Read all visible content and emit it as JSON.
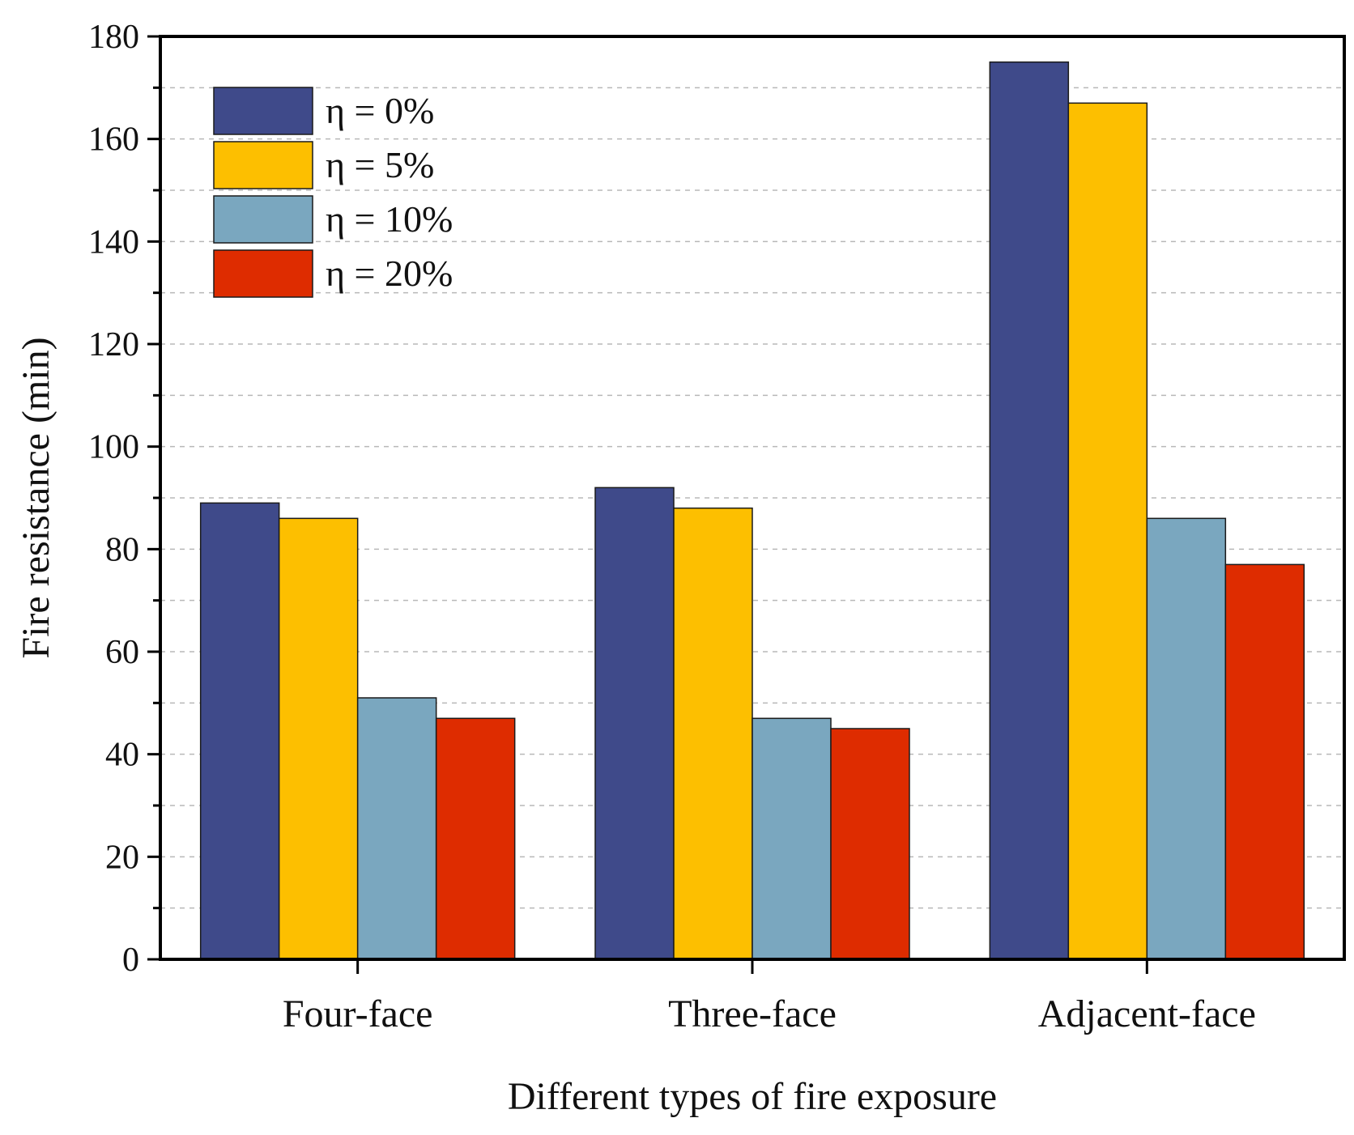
{
  "chart_data": {
    "type": "bar",
    "title": "",
    "xlabel": "Different types of fire exposure",
    "ylabel": "Fire resistance (min)",
    "categories": [
      "Four-face",
      "Three-face",
      "Adjacent-face"
    ],
    "ylim": [
      0,
      180
    ],
    "yticks": [
      0,
      20,
      40,
      60,
      80,
      100,
      120,
      140,
      160,
      180
    ],
    "grid": "horizontal dashed",
    "legend_position": "top-left",
    "series": [
      {
        "name": "η = 0%",
        "color": "#3f4a8a",
        "values": [
          89,
          92,
          175
        ]
      },
      {
        "name": "η = 5%",
        "color": "#fdbf00",
        "values": [
          86,
          88,
          167
        ]
      },
      {
        "name": "η = 10%",
        "color": "#7aa7bf",
        "values": [
          51,
          47,
          86
        ]
      },
      {
        "name": "η = 20%",
        "color": "#de2c00",
        "values": [
          47,
          45,
          77
        ]
      }
    ]
  }
}
